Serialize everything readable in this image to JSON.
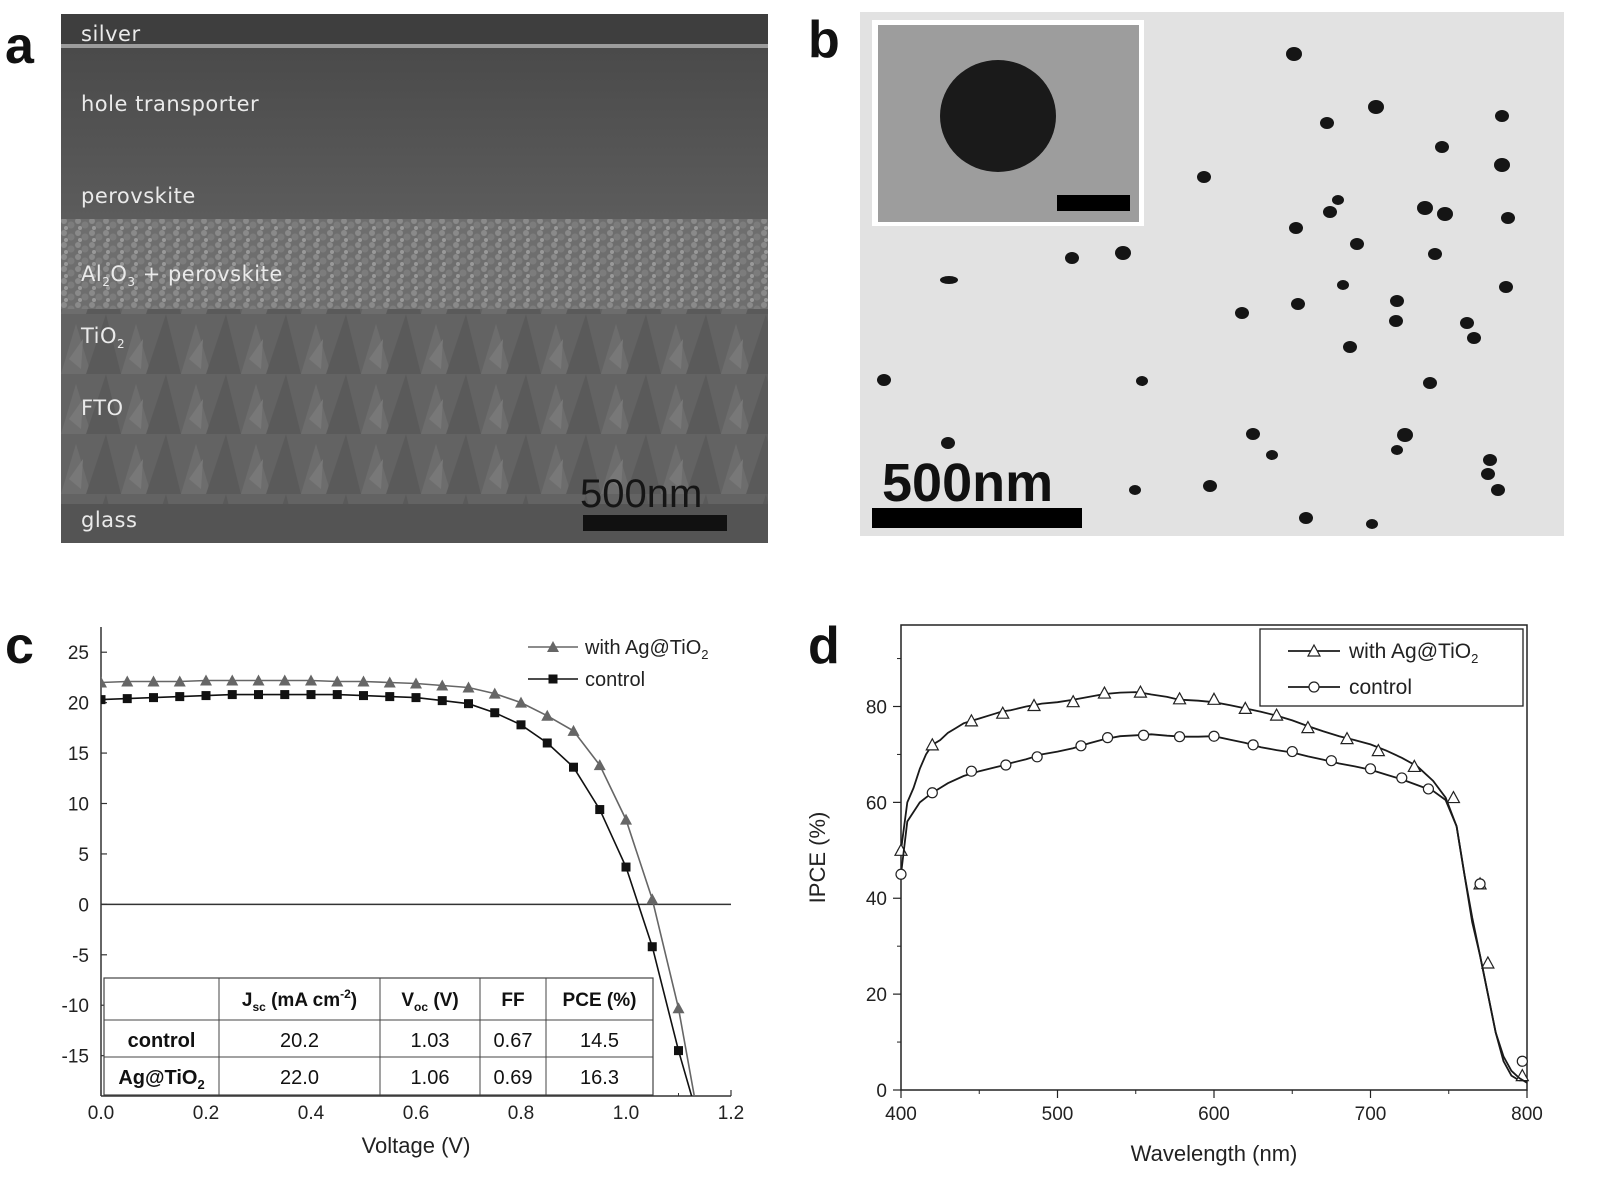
{
  "panel_letters": {
    "a": "a",
    "b": "b",
    "c": "c",
    "d": "d"
  },
  "panel_a": {
    "labels": {
      "silver": "silver",
      "hole": "hole transporter",
      "perovskite": "perovskite",
      "al2o3_pre": "Al",
      "al2o3_sub1": "2",
      "al2o3_mid": "O",
      "al2o3_sub2": "3",
      "al2o3_post": " + perovskite",
      "tio2_pre": "TiO",
      "tio2_sub": "2",
      "fto": "FTO",
      "glass": "glass"
    },
    "scale_label": "500nm"
  },
  "panel_b": {
    "scale_label": "500nm"
  },
  "chart_data": [
    {
      "type": "line",
      "panel": "c",
      "xlabel": "Voltage (V)",
      "ylabel": "",
      "xlim": [
        0,
        1.2
      ],
      "ylim": [
        -19,
        27.5
      ],
      "xticks": [
        "0.0",
        "0.2",
        "0.4",
        "0.6",
        "0.8",
        "1.0",
        "1.2"
      ],
      "yticks": [
        "25",
        "20",
        "15",
        "10",
        "5",
        "0",
        "-5",
        "-10",
        "-15"
      ],
      "ytick_values": [
        25,
        20,
        15,
        10,
        5,
        0,
        -5,
        -10,
        -15
      ],
      "xtick_values": [
        0.0,
        0.2,
        0.4,
        0.6,
        0.8,
        1.0,
        1.2
      ],
      "zero_line": true,
      "legend_position": "top-right",
      "legend": {
        "with_pre": "with Ag@TiO",
        "with_sub": "2",
        "control": "control"
      },
      "series": [
        {
          "name": "with Ag@TiO2",
          "marker": "triangle",
          "color": "#666666",
          "x": [
            0.0,
            0.05,
            0.1,
            0.15,
            0.2,
            0.25,
            0.3,
            0.35,
            0.4,
            0.45,
            0.5,
            0.55,
            0.6,
            0.65,
            0.7,
            0.75,
            0.8,
            0.85,
            0.9,
            0.95,
            1.0,
            1.05,
            1.1,
            1.13
          ],
          "y": [
            22.0,
            22.1,
            22.1,
            22.1,
            22.2,
            22.2,
            22.2,
            22.2,
            22.2,
            22.1,
            22.1,
            22.0,
            21.9,
            21.7,
            21.5,
            20.9,
            20.0,
            18.7,
            17.2,
            13.8,
            8.4,
            0.5,
            -10.3,
            -19.0
          ],
          "marker_indices": [
            0,
            1,
            2,
            3,
            4,
            5,
            6,
            7,
            8,
            9,
            10,
            11,
            12,
            13,
            14,
            15,
            16,
            17,
            18,
            19,
            20,
            21,
            22
          ]
        },
        {
          "name": "control",
          "marker": "square",
          "color": "#111111",
          "x": [
            0.0,
            0.05,
            0.1,
            0.15,
            0.2,
            0.25,
            0.3,
            0.35,
            0.4,
            0.45,
            0.5,
            0.55,
            0.6,
            0.65,
            0.7,
            0.75,
            0.8,
            0.85,
            0.9,
            0.95,
            1.0,
            1.05,
            1.1,
            1.125
          ],
          "y": [
            20.3,
            20.4,
            20.5,
            20.6,
            20.7,
            20.8,
            20.8,
            20.8,
            20.8,
            20.8,
            20.7,
            20.6,
            20.5,
            20.2,
            19.9,
            19.0,
            17.8,
            16.0,
            13.6,
            9.4,
            3.7,
            -4.2,
            -14.5,
            -19.0
          ],
          "marker_indices": [
            0,
            1,
            2,
            3,
            4,
            5,
            6,
            7,
            8,
            9,
            10,
            11,
            12,
            13,
            14,
            15,
            16,
            17,
            18,
            19,
            20,
            21,
            22
          ]
        }
      ],
      "table": {
        "headers": {
          "jsc_main": "J",
          "jsc_sub": "sc",
          "jsc_rest": " (mA cm",
          "jsc_sup": "-2",
          "jsc_end": ")",
          "voc_main": "V",
          "voc_sub": "oc",
          "voc_rest": " (V)",
          "ff": "FF",
          "pce": "PCE (%)"
        },
        "rows": [
          {
            "label": "control",
            "label_sub": "",
            "jsc": "20.2",
            "voc": "1.03",
            "ff": "0.67",
            "pce": "14.5"
          },
          {
            "label": "Ag@TiO",
            "label_sub": "2",
            "jsc": "22.0",
            "voc": "1.06",
            "ff": "0.69",
            "pce": "16.3"
          }
        ]
      }
    },
    {
      "type": "line",
      "panel": "d",
      "xlabel": "Wavelength (nm)",
      "ylabel": "IPCE (%)",
      "xlim": [
        400,
        800
      ],
      "ylim": [
        0,
        97
      ],
      "xticks": [
        "400",
        "500",
        "600",
        "700",
        "800"
      ],
      "xtick_values": [
        400,
        500,
        600,
        700,
        800
      ],
      "yticks": [
        "0",
        "20",
        "40",
        "60",
        "80"
      ],
      "ytick_values": [
        0,
        20,
        40,
        60,
        80
      ],
      "legend_position": "top-right",
      "legend": {
        "with_pre": "with Ag@TiO",
        "with_sub": "2",
        "control": "control"
      },
      "series": [
        {
          "name": "with Ag@TiO2",
          "marker": "triangle-open",
          "x": [
            400,
            404,
            408,
            412,
            416,
            420,
            425,
            430,
            435,
            440,
            445,
            450,
            460,
            465,
            470,
            480,
            485,
            490,
            500,
            510,
            520,
            530,
            540,
            550,
            555,
            560,
            570,
            575,
            580,
            590,
            600,
            610,
            620,
            630,
            640,
            650,
            660,
            670,
            680,
            690,
            700,
            710,
            720,
            730,
            740,
            748,
            755,
            760,
            765,
            770,
            775,
            780,
            785,
            790,
            795,
            800
          ],
          "y": [
            50,
            60,
            63,
            67,
            70,
            72,
            73,
            74.5,
            75.5,
            76.5,
            77,
            77.5,
            78.5,
            79,
            79.2,
            80,
            80.3,
            80.6,
            80.9,
            81.4,
            82,
            82.6,
            82.9,
            83,
            82.8,
            82.5,
            82,
            81.6,
            81.4,
            81.2,
            80.9,
            80.3,
            79.6,
            78.9,
            78.1,
            77.1,
            75.9,
            74.8,
            73.8,
            73,
            72.1,
            70.8,
            69.3,
            67.5,
            64.5,
            61,
            55,
            45,
            35,
            28,
            20,
            12,
            6,
            3,
            2,
            2
          ],
          "markers": [
            [
              400,
              50
            ],
            [
              420,
              72
            ],
            [
              445,
              77
            ],
            [
              465,
              78.6
            ],
            [
              485,
              80.2
            ],
            [
              510,
              81
            ],
            [
              530,
              82.8
            ],
            [
              553,
              83
            ],
            [
              578,
              81.6
            ],
            [
              600,
              81.5
            ],
            [
              620,
              79.6
            ],
            [
              640,
              78.2
            ],
            [
              660,
              75.6
            ],
            [
              685,
              73.3
            ],
            [
              705,
              70.8
            ],
            [
              728,
              67.5
            ],
            [
              753,
              61
            ],
            [
              770,
              43
            ],
            [
              775,
              26.5
            ],
            [
              797,
              3
            ]
          ]
        },
        {
          "name": "control",
          "marker": "circle-open",
          "x": [
            400,
            404,
            408,
            412,
            416,
            420,
            425,
            430,
            440,
            445,
            450,
            460,
            465,
            470,
            480,
            485,
            490,
            500,
            510,
            520,
            530,
            540,
            550,
            555,
            560,
            570,
            580,
            590,
            600,
            610,
            620,
            630,
            640,
            650,
            660,
            670,
            680,
            690,
            700,
            710,
            720,
            730,
            740,
            748,
            755,
            760,
            765,
            770,
            775,
            780,
            785,
            790,
            795,
            800
          ],
          "y": [
            45,
            56,
            58,
            60,
            61,
            62,
            63,
            64,
            65.5,
            66,
            66.5,
            67.3,
            67.7,
            68.2,
            69,
            69.5,
            70,
            70.6,
            71.3,
            72.3,
            73.2,
            73.8,
            74,
            74.1,
            74.2,
            73.9,
            73.7,
            73.7,
            73.8,
            73.1,
            72.4,
            71.5,
            70.9,
            70.4,
            69.6,
            68.9,
            68.1,
            67.5,
            66.8,
            65.8,
            64.8,
            63.6,
            62.4,
            60.5,
            55,
            45,
            36,
            28,
            20,
            12,
            7,
            4,
            2.5,
            1.5
          ],
          "markers": [
            [
              400,
              45
            ],
            [
              420,
              62
            ],
            [
              445,
              66.5
            ],
            [
              467,
              67.8
            ],
            [
              487,
              69.5
            ],
            [
              515,
              71.8
            ],
            [
              532,
              73.5
            ],
            [
              555,
              74
            ],
            [
              578,
              73.7
            ],
            [
              600,
              73.8
            ],
            [
              625,
              72
            ],
            [
              650,
              70.6
            ],
            [
              675,
              68.7
            ],
            [
              700,
              67
            ],
            [
              720,
              65.1
            ],
            [
              737,
              62.8
            ],
            [
              770,
              43
            ],
            [
              797,
              6
            ]
          ]
        }
      ]
    }
  ]
}
